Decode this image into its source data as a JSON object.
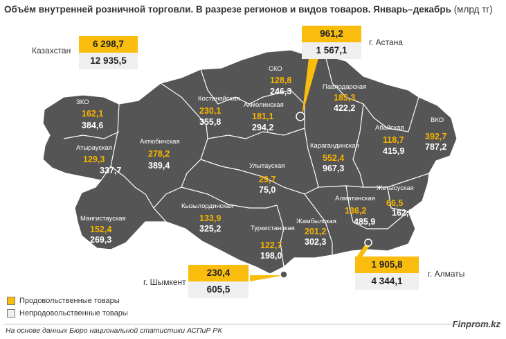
{
  "title": {
    "main": "Объём внутренней розничной торговли. В разрезе регионов и видов товаров. Январь–декабрь",
    "unit": "(млрд тг)"
  },
  "colors": {
    "food": "#fbbd0d",
    "nonfood": "#efefef",
    "map": "#555555",
    "border": "#ffffff"
  },
  "national": {
    "label": "Казахстан",
    "food": "6 298,7",
    "nonfood": "12 935,5"
  },
  "cities": {
    "astana": {
      "label": "г. Астана",
      "food": "961,2",
      "nonfood": "1 567,1"
    },
    "almaty": {
      "label": "г. Алматы",
      "food": "1 905,8",
      "nonfood": "4 344,1"
    },
    "shymkent": {
      "label": "г. Шымкент",
      "food": "230,4",
      "nonfood": "605,5"
    }
  },
  "regions": {
    "zko": {
      "name": "ЗКО",
      "food": "162,1",
      "nonfood": "384,6"
    },
    "atyrau": {
      "name": "Атырауская",
      "food": "129,3",
      "nonfood": "337,7"
    },
    "mangystau": {
      "name": "Мангистауская",
      "food": "152,4",
      "nonfood": "269,3"
    },
    "aktobe": {
      "name": "Актюбинская",
      "food": "278,2",
      "nonfood": "389,4"
    },
    "kostanay": {
      "name": "Костанайская",
      "food": "230,1",
      "nonfood": "355,8"
    },
    "sko": {
      "name": "СКО",
      "food": "128,8",
      "nonfood": "246,3"
    },
    "akmola": {
      "name": "Акмолинская",
      "food": "181,1",
      "nonfood": "294,2"
    },
    "pavlodar": {
      "name": "Павлодарская",
      "food": "185,3",
      "nonfood": "422,2"
    },
    "vko": {
      "name": "ВКО",
      "food": "392,7",
      "nonfood": "787,2"
    },
    "abay": {
      "name": "Абайская",
      "food": "118,7",
      "nonfood": "415,9"
    },
    "karaganda": {
      "name": "Карагандинская",
      "food": "552,4",
      "nonfood": "967,3"
    },
    "ulytau": {
      "name": "Улытауская",
      "food": "29,7",
      "nonfood": "75,0"
    },
    "kyzylorda": {
      "name": "Кызылординская",
      "food": "133,9",
      "nonfood": "325,2"
    },
    "turkestan": {
      "name": "Туркестанская",
      "food": "122,7",
      "nonfood": "198,0"
    },
    "zhambyl": {
      "name": "Жамбылская",
      "food": "201,2",
      "nonfood": "302,3"
    },
    "almaty_reg": {
      "name": "Алматинская",
      "food": "136,2",
      "nonfood": "485,9"
    },
    "zhetysu": {
      "name": "Жетысуская",
      "food": "66,5",
      "nonfood": "162,7"
    }
  },
  "legend": {
    "food": "Продовольственные товары",
    "nonfood": "Непродовольственные товары"
  },
  "source": "На основе данных Бюро национальной статистики АСПиР РК",
  "brand": "Finprom.kz"
}
